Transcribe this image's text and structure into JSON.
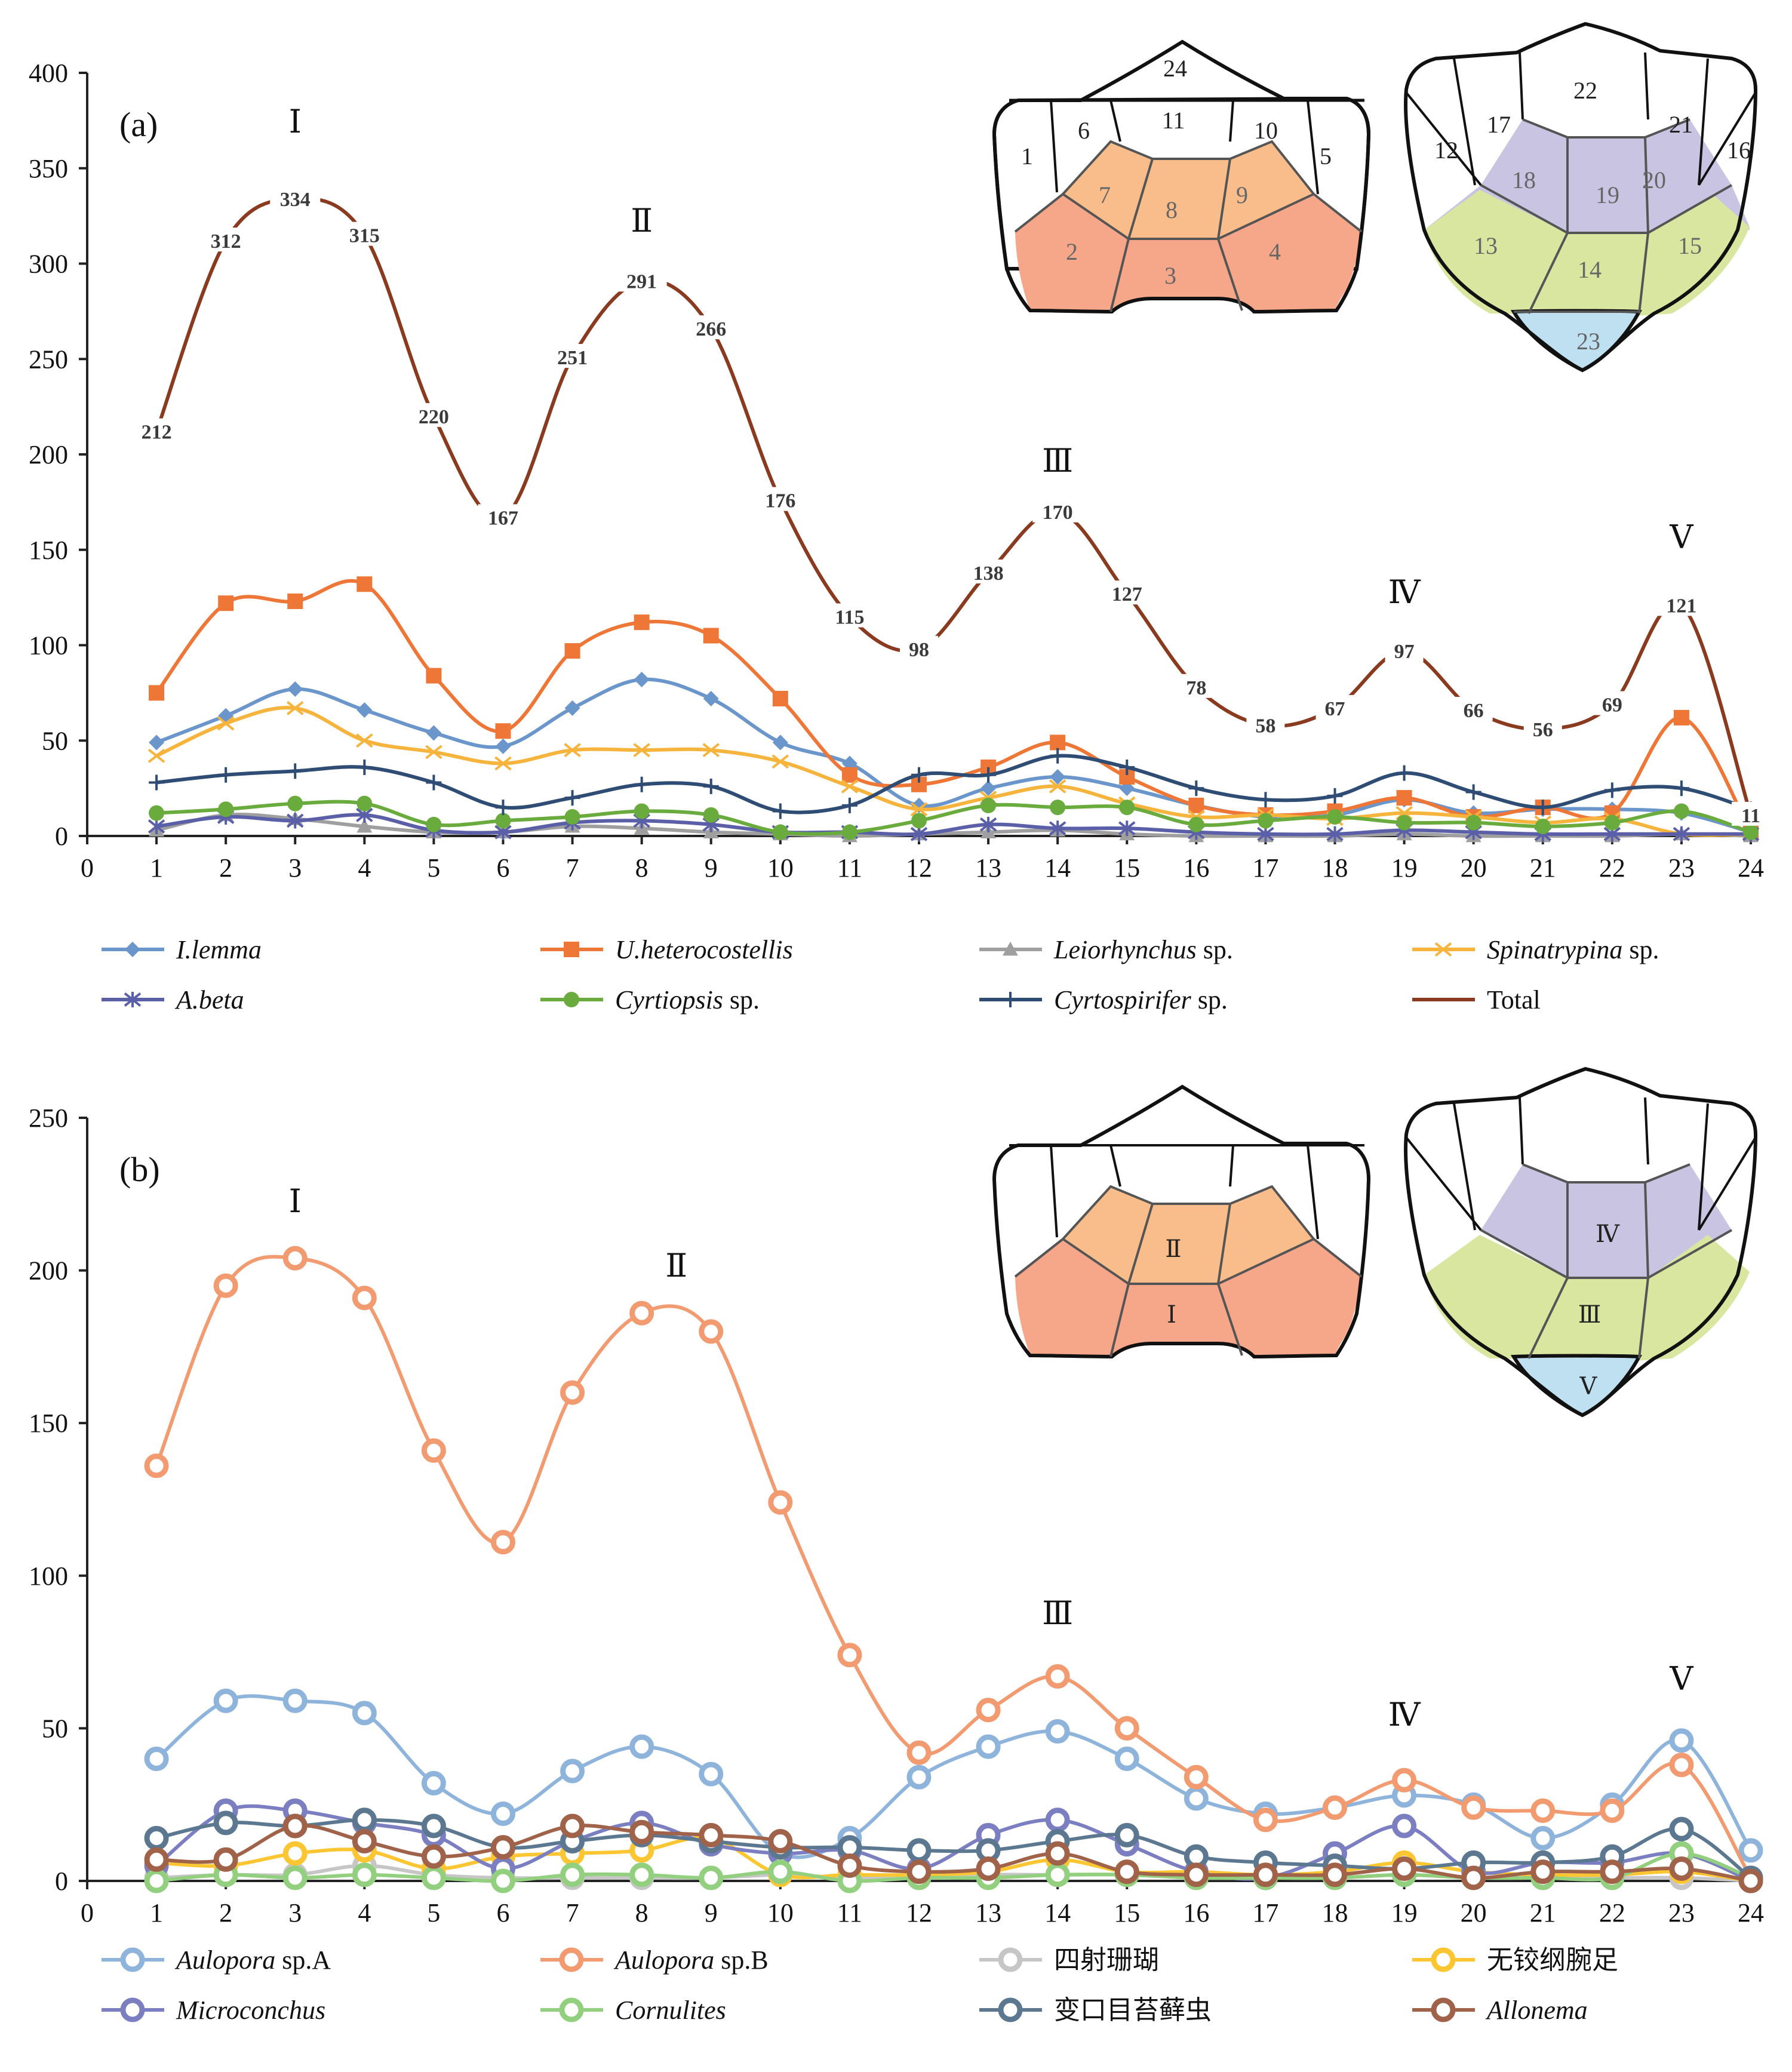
{
  "chart_data": [
    {
      "type": "line",
      "panel_label": "(a)",
      "x": [
        1,
        2,
        3,
        4,
        5,
        6,
        7,
        8,
        9,
        10,
        11,
        12,
        13,
        14,
        15,
        16,
        17,
        18,
        19,
        20,
        21,
        22,
        23,
        24
      ],
      "xticks": [
        "0",
        "1",
        "2",
        "3",
        "4",
        "5",
        "6",
        "7",
        "8",
        "9",
        "10",
        "11",
        "12",
        "13",
        "14",
        "15",
        "16",
        "17",
        "18",
        "19",
        "20",
        "21",
        "22",
        "23",
        "24"
      ],
      "xlim": [
        0,
        24
      ],
      "ylim": [
        0,
        400
      ],
      "yticks": [
        "0",
        "50",
        "100",
        "150",
        "200",
        "250",
        "300",
        "350",
        "400"
      ],
      "series": [
        {
          "name": "I.lemma",
          "italic": "I.lemma",
          "suffix": "",
          "color": "#6a96cc",
          "marker": "diamond",
          "values": [
            49,
            63,
            77,
            66,
            54,
            47,
            67,
            82,
            72,
            49,
            38,
            16,
            25,
            31,
            25,
            16,
            10,
            11,
            19,
            12,
            14,
            14,
            12,
            2
          ]
        },
        {
          "name": "U.heterocostellis",
          "italic": "U.heterocostellis",
          "suffix": "",
          "color": "#ee7636",
          "marker": "square",
          "values": [
            75,
            122,
            123,
            132,
            84,
            55,
            97,
            112,
            105,
            72,
            32,
            27,
            36,
            49,
            31,
            16,
            11,
            13,
            20,
            10,
            15,
            12,
            62,
            2
          ]
        },
        {
          "name": "Leiorhynchus sp.",
          "italic": "Leiorhynchus",
          "suffix": " sp.",
          "color": "#9f9f9f",
          "marker": "triangle",
          "values": [
            3,
            11,
            9,
            5,
            2,
            2,
            5,
            4,
            2,
            1,
            0,
            1,
            2,
            3,
            1,
            0,
            0,
            0,
            1,
            0,
            0,
            0,
            1,
            0
          ]
        },
        {
          "name": "Spinatrypina sp.",
          "italic": "Spinatrypina",
          "suffix": " sp.",
          "color": "#f6b43c",
          "marker": "x",
          "values": [
            42,
            59,
            67,
            50,
            44,
            38,
            45,
            45,
            45,
            39,
            26,
            14,
            20,
            26,
            17,
            10,
            11,
            9,
            12,
            10,
            7,
            9,
            1,
            1
          ]
        },
        {
          "name": "A.beta",
          "italic": "A.beta",
          "suffix": "",
          "color": "#5a5fa8",
          "marker": "star",
          "values": [
            5,
            10,
            8,
            11,
            3,
            2,
            7,
            8,
            6,
            2,
            2,
            1,
            6,
            4,
            4,
            2,
            1,
            1,
            3,
            2,
            1,
            1,
            1,
            1
          ]
        },
        {
          "name": "Cyrtiopsis sp.",
          "italic": "Cyrtiopsis",
          "suffix": " sp.",
          "color": "#6aab3e",
          "marker": "circle",
          "values": [
            12,
            14,
            17,
            17,
            6,
            8,
            10,
            13,
            11,
            2,
            2,
            8,
            16,
            15,
            15,
            6,
            8,
            10,
            7,
            7,
            5,
            7,
            13,
            2
          ]
        },
        {
          "name": "Cyrtospirifer sp.",
          "italic": "Cyrtospirifer",
          "suffix": " sp.",
          "color": "#2f4d74",
          "marker": "plus",
          "values": [
            28,
            32,
            34,
            36,
            28,
            15,
            20,
            27,
            26,
            13,
            16,
            32,
            32,
            42,
            36,
            25,
            19,
            21,
            33,
            23,
            15,
            24,
            25,
            14
          ]
        },
        {
          "name": "Total",
          "italic": "",
          "suffix": "Total",
          "color": "#8a3a1e",
          "marker": "none",
          "values": [
            212,
            312,
            334,
            315,
            220,
            167,
            251,
            291,
            266,
            176,
            115,
            98,
            138,
            170,
            127,
            78,
            58,
            67,
            97,
            66,
            56,
            69,
            121,
            11
          ]
        }
      ],
      "point_labels": [
        "212",
        "312",
        "334",
        "315",
        "220",
        "167",
        "251",
        "291",
        "266",
        "176",
        "115",
        "98",
        "138",
        "170",
        "127",
        "78",
        "58",
        "67",
        "97",
        "66",
        "56",
        "69",
        "121",
        "11"
      ],
      "peaks": [
        {
          "label": "Ⅰ",
          "x": 3
        },
        {
          "label": "Ⅱ",
          "x": 8
        },
        {
          "label": "Ⅲ",
          "x": 14
        },
        {
          "label": "Ⅳ",
          "x": 19
        },
        {
          "label": "Ⅴ",
          "x": 23
        }
      ],
      "grid": false,
      "legend": "bottom"
    },
    {
      "type": "line",
      "panel_label": "(b)",
      "x": [
        1,
        2,
        3,
        4,
        5,
        6,
        7,
        8,
        9,
        10,
        11,
        12,
        13,
        14,
        15,
        16,
        17,
        18,
        19,
        20,
        21,
        22,
        23,
        24
      ],
      "xticks": [
        "0",
        "1",
        "2",
        "3",
        "4",
        "5",
        "6",
        "7",
        "8",
        "9",
        "10",
        "11",
        "12",
        "13",
        "14",
        "15",
        "16",
        "17",
        "18",
        "19",
        "20",
        "21",
        "22",
        "23",
        "24"
      ],
      "xlim": [
        0,
        24
      ],
      "ylim": [
        0,
        250
      ],
      "yticks": [
        "0",
        "50",
        "100",
        "150",
        "200",
        "250"
      ],
      "series": [
        {
          "name": "Aulopora sp.A",
          "italic": "Aulopora",
          "suffix": " sp.A",
          "color": "#8fb4dc",
          "values": [
            40,
            59,
            59,
            55,
            32,
            22,
            36,
            44,
            35,
            9,
            14,
            34,
            44,
            49,
            40,
            27,
            22,
            24,
            28,
            25,
            14,
            25,
            46,
            10
          ]
        },
        {
          "name": "Aulopora sp.B",
          "italic": "Aulopora",
          "suffix": " sp.B",
          "color": "#f29a70",
          "values": [
            136,
            195,
            204,
            191,
            141,
            111,
            160,
            186,
            180,
            124,
            74,
            42,
            56,
            67,
            50,
            34,
            20,
            24,
            33,
            24,
            23,
            23,
            38,
            1
          ]
        },
        {
          "name": "四射珊瑚",
          "italic": "",
          "suffix": "四射珊瑚",
          "color": "#c6c6c6",
          "values": [
            1,
            2,
            2,
            5,
            2,
            1,
            1,
            1,
            1,
            2,
            1,
            1,
            2,
            2,
            2,
            1,
            1,
            1,
            2,
            1,
            1,
            1,
            1,
            0
          ]
        },
        {
          "name": "无铰纲腕足",
          "italic": "",
          "suffix": "无铰纲腕足",
          "color": "#fcc633",
          "values": [
            6,
            5,
            9,
            10,
            4,
            8,
            9,
            10,
            14,
            2,
            2,
            2,
            3,
            7,
            3,
            3,
            2,
            3,
            6,
            3,
            2,
            2,
            3,
            0
          ]
        },
        {
          "name": "Microconchus",
          "italic": "Microconchus",
          "suffix": "",
          "color": "#7b7fc2",
          "values": [
            5,
            23,
            23,
            19,
            15,
            4,
            13,
            19,
            12,
            9,
            10,
            4,
            15,
            20,
            12,
            3,
            1,
            9,
            18,
            3,
            6,
            6,
            9,
            0
          ]
        },
        {
          "name": "Cornulites",
          "italic": "Cornulites",
          "suffix": "",
          "color": "#92cf7e",
          "values": [
            0,
            2,
            1,
            2,
            1,
            0,
            2,
            2,
            1,
            3,
            0,
            1,
            1,
            2,
            2,
            1,
            1,
            1,
            2,
            1,
            1,
            1,
            9,
            1
          ]
        },
        {
          "name": "变口目苔藓虫",
          "italic": "",
          "suffix": "变口目苔藓虫",
          "color": "#5c7890",
          "values": [
            14,
            19,
            18,
            20,
            18,
            11,
            13,
            15,
            13,
            11,
            11,
            10,
            10,
            13,
            15,
            8,
            6,
            5,
            4,
            6,
            6,
            8,
            17,
            1
          ]
        },
        {
          "name": "Allonema",
          "italic": "Allonema",
          "suffix": "",
          "color": "#a0634a",
          "values": [
            7,
            7,
            18,
            13,
            8,
            11,
            18,
            16,
            15,
            13,
            5,
            3,
            4,
            9,
            3,
            2,
            2,
            2,
            4,
            1,
            3,
            3,
            4,
            0
          ]
        }
      ],
      "peaks": [
        {
          "label": "Ⅰ",
          "x": 3
        },
        {
          "label": "Ⅱ",
          "x": 8.5
        },
        {
          "label": "Ⅲ",
          "x": 14
        },
        {
          "label": "Ⅳ",
          "x": 19
        },
        {
          "label": "Ⅴ",
          "x": 23
        }
      ],
      "grid": false,
      "legend": "bottom"
    }
  ],
  "diagram_a": {
    "left_regions": [
      "24",
      "1",
      "6",
      "11",
      "10",
      "5",
      "7",
      "8",
      "9",
      "2",
      "3",
      "4"
    ],
    "right_regions": [
      "22",
      "17",
      "21",
      "12",
      "16",
      "18",
      "19",
      "20",
      "13",
      "14",
      "15",
      "23"
    ]
  },
  "diagram_b": {
    "left_regions": [
      "Ⅱ",
      "Ⅰ"
    ],
    "right_regions": [
      "Ⅳ",
      "Ⅲ",
      "Ⅴ"
    ]
  },
  "colors": {
    "orange_light": "#f9bd8b",
    "orange_dark": "#f6a689",
    "purple": "#c8c4e2",
    "green": "#d9e6a0",
    "blue": "#bfe0f1",
    "axis": "#222222"
  }
}
